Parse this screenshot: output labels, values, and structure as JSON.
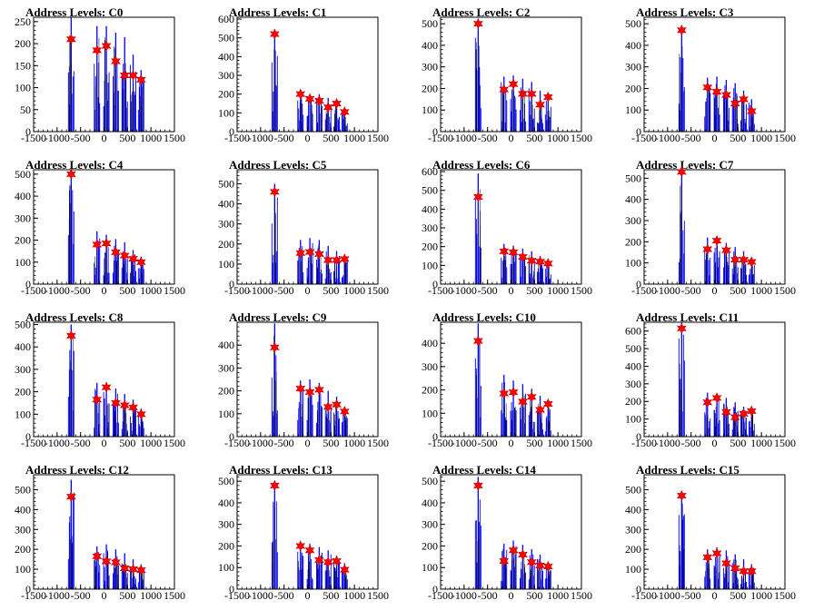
{
  "chart_data": [
    {
      "type": "histogram",
      "title": "Address Levels: C0",
      "xlim": [
        -1500,
        1500
      ],
      "ylim": [
        0,
        260
      ],
      "yticks": [
        0,
        50,
        100,
        150,
        200,
        250
      ],
      "xticks": [
        -1500,
        -1000,
        -500,
        0,
        500,
        1000,
        1500
      ],
      "peaks": [
        {
          "x": -700,
          "spike": 260,
          "marker": 210
        },
        {
          "x": -150,
          "spike": 240,
          "marker": 185
        },
        {
          "x": 50,
          "spike": 240,
          "marker": 195
        },
        {
          "x": 250,
          "spike": 225,
          "marker": 160
        },
        {
          "x": 440,
          "spike": 215,
          "marker": 128
        },
        {
          "x": 620,
          "spike": 175,
          "marker": 128
        },
        {
          "x": 790,
          "spike": 140,
          "marker": 118
        }
      ]
    },
    {
      "type": "histogram",
      "title": "Address Levels: C1",
      "xlim": [
        -1500,
        1500
      ],
      "ylim": [
        0,
        610
      ],
      "yticks": [
        0,
        100,
        200,
        300,
        400,
        500,
        600
      ],
      "xticks": [
        -1500,
        -1000,
        -500,
        0,
        500,
        1000,
        1500
      ],
      "peaks": [
        {
          "x": -700,
          "spike": 540,
          "marker": 520
        },
        {
          "x": -150,
          "spike": 215,
          "marker": 200
        },
        {
          "x": 50,
          "spike": 200,
          "marker": 175
        },
        {
          "x": 250,
          "spike": 200,
          "marker": 165
        },
        {
          "x": 440,
          "spike": 180,
          "marker": 130
        },
        {
          "x": 620,
          "spike": 160,
          "marker": 150
        },
        {
          "x": 790,
          "spike": 120,
          "marker": 105
        }
      ]
    },
    {
      "type": "histogram",
      "title": "Address Levels: C2",
      "xlim": [
        -1500,
        1500
      ],
      "ylim": [
        0,
        530
      ],
      "yticks": [
        0,
        100,
        200,
        300,
        400,
        500
      ],
      "xticks": [
        -1500,
        -1000,
        -500,
        0,
        500,
        1000,
        1500
      ],
      "peaks": [
        {
          "x": -700,
          "spike": 510,
          "marker": 500
        },
        {
          "x": -150,
          "spike": 255,
          "marker": 195
        },
        {
          "x": 50,
          "spike": 260,
          "marker": 220
        },
        {
          "x": 250,
          "spike": 245,
          "marker": 175
        },
        {
          "x": 440,
          "spike": 230,
          "marker": 175
        },
        {
          "x": 620,
          "spike": 190,
          "marker": 125
        },
        {
          "x": 790,
          "spike": 170,
          "marker": 160
        }
      ]
    },
    {
      "type": "histogram",
      "title": "Address Levels: C3",
      "xlim": [
        -1500,
        1500
      ],
      "ylim": [
        0,
        530
      ],
      "yticks": [
        0,
        100,
        200,
        300,
        400,
        500
      ],
      "xticks": [
        -1500,
        -1000,
        -500,
        0,
        500,
        1000,
        1500
      ],
      "peaks": [
        {
          "x": -700,
          "spike": 480,
          "marker": 470
        },
        {
          "x": -150,
          "spike": 250,
          "marker": 205
        },
        {
          "x": 50,
          "spike": 255,
          "marker": 185
        },
        {
          "x": 250,
          "spike": 240,
          "marker": 170
        },
        {
          "x": 440,
          "spike": 225,
          "marker": 130
        },
        {
          "x": 620,
          "spike": 190,
          "marker": 150
        },
        {
          "x": 790,
          "spike": 150,
          "marker": 95
        }
      ]
    },
    {
      "type": "histogram",
      "title": "Address Levels: C4",
      "xlim": [
        -1500,
        1500
      ],
      "ylim": [
        0,
        520
      ],
      "yticks": [
        0,
        100,
        200,
        300,
        400,
        500
      ],
      "xticks": [
        -1500,
        -1000,
        -500,
        0,
        500,
        1000,
        1500
      ],
      "peaks": [
        {
          "x": -700,
          "spike": 510,
          "marker": 500
        },
        {
          "x": -150,
          "spike": 240,
          "marker": 180
        },
        {
          "x": 50,
          "spike": 225,
          "marker": 185
        },
        {
          "x": 250,
          "spike": 205,
          "marker": 145
        },
        {
          "x": 440,
          "spike": 190,
          "marker": 130
        },
        {
          "x": 620,
          "spike": 155,
          "marker": 115
        },
        {
          "x": 790,
          "spike": 125,
          "marker": 100
        }
      ]
    },
    {
      "type": "histogram",
      "title": "Address Levels: C5",
      "xlim": [
        -1500,
        1500
      ],
      "ylim": [
        0,
        570
      ],
      "yticks": [
        0,
        100,
        200,
        300,
        400,
        500
      ],
      "xticks": [
        -1500,
        -1000,
        -500,
        0,
        500,
        1000,
        1500
      ],
      "peaks": [
        {
          "x": -700,
          "spike": 500,
          "marker": 460
        },
        {
          "x": -150,
          "spike": 220,
          "marker": 155
        },
        {
          "x": 50,
          "spike": 230,
          "marker": 160
        },
        {
          "x": 250,
          "spike": 220,
          "marker": 150
        },
        {
          "x": 440,
          "spike": 190,
          "marker": 120
        },
        {
          "x": 620,
          "spike": 165,
          "marker": 120
        },
        {
          "x": 790,
          "spike": 130,
          "marker": 125
        }
      ]
    },
    {
      "type": "histogram",
      "title": "Address Levels: C6",
      "xlim": [
        -1500,
        1500
      ],
      "ylim": [
        0,
        610
      ],
      "yticks": [
        0,
        100,
        200,
        300,
        400,
        500,
        600
      ],
      "xticks": [
        -1500,
        -1000,
        -500,
        0,
        500,
        1000,
        1500
      ],
      "peaks": [
        {
          "x": -700,
          "spike": 590,
          "marker": 465
        },
        {
          "x": -150,
          "spike": 215,
          "marker": 175
        },
        {
          "x": 50,
          "spike": 205,
          "marker": 170
        },
        {
          "x": 250,
          "spike": 190,
          "marker": 145
        },
        {
          "x": 440,
          "spike": 175,
          "marker": 125
        },
        {
          "x": 620,
          "spike": 150,
          "marker": 120
        },
        {
          "x": 790,
          "spike": 120,
          "marker": 110
        }
      ]
    },
    {
      "type": "histogram",
      "title": "Address Levels: C7",
      "xlim": [
        -1500,
        1500
      ],
      "ylim": [
        0,
        540
      ],
      "yticks": [
        0,
        100,
        200,
        300,
        400,
        500
      ],
      "xticks": [
        -1500,
        -1000,
        -500,
        0,
        500,
        1000,
        1500
      ],
      "peaks": [
        {
          "x": -700,
          "spike": 545,
          "marker": 530
        },
        {
          "x": -150,
          "spike": 220,
          "marker": 165
        },
        {
          "x": 50,
          "spike": 215,
          "marker": 205
        },
        {
          "x": 250,
          "spike": 195,
          "marker": 160
        },
        {
          "x": 440,
          "spike": 175,
          "marker": 115
        },
        {
          "x": 620,
          "spike": 155,
          "marker": 115
        },
        {
          "x": 790,
          "spike": 120,
          "marker": 105
        }
      ]
    },
    {
      "type": "histogram",
      "title": "Address Levels: C8",
      "xlim": [
        -1500,
        1500
      ],
      "ylim": [
        0,
        510
      ],
      "yticks": [
        0,
        100,
        200,
        300,
        400,
        500
      ],
      "xticks": [
        -1500,
        -1000,
        -500,
        0,
        500,
        1000,
        1500
      ],
      "peaks": [
        {
          "x": -700,
          "spike": 500,
          "marker": 450
        },
        {
          "x": -150,
          "spike": 240,
          "marker": 165
        },
        {
          "x": 50,
          "spike": 230,
          "marker": 220
        },
        {
          "x": 250,
          "spike": 215,
          "marker": 150
        },
        {
          "x": 440,
          "spike": 190,
          "marker": 140
        },
        {
          "x": 620,
          "spike": 165,
          "marker": 130
        },
        {
          "x": 790,
          "spike": 125,
          "marker": 100
        }
      ]
    },
    {
      "type": "histogram",
      "title": "Address Levels: C9",
      "xlim": [
        -1500,
        1500
      ],
      "ylim": [
        0,
        500
      ],
      "yticks": [
        0,
        100,
        200,
        300,
        400
      ],
      "xticks": [
        -1500,
        -1000,
        -500,
        0,
        500,
        1000,
        1500
      ],
      "peaks": [
        {
          "x": -700,
          "spike": 495,
          "marker": 390
        },
        {
          "x": -150,
          "spike": 245,
          "marker": 210
        },
        {
          "x": 50,
          "spike": 250,
          "marker": 195
        },
        {
          "x": 250,
          "spike": 235,
          "marker": 205
        },
        {
          "x": 440,
          "spike": 200,
          "marker": 130
        },
        {
          "x": 620,
          "spike": 175,
          "marker": 140
        },
        {
          "x": 790,
          "spike": 130,
          "marker": 110
        }
      ]
    },
    {
      "type": "histogram",
      "title": "Address Levels: C10",
      "xlim": [
        -1500,
        1500
      ],
      "ylim": [
        0,
        490
      ],
      "yticks": [
        0,
        100,
        200,
        300,
        400
      ],
      "xticks": [
        -1500,
        -1000,
        -500,
        0,
        500,
        1000,
        1500
      ],
      "peaks": [
        {
          "x": -700,
          "spike": 485,
          "marker": 410
        },
        {
          "x": -150,
          "spike": 265,
          "marker": 185
        },
        {
          "x": 50,
          "spike": 240,
          "marker": 190
        },
        {
          "x": 250,
          "spike": 225,
          "marker": 150
        },
        {
          "x": 440,
          "spike": 205,
          "marker": 170
        },
        {
          "x": 620,
          "spike": 175,
          "marker": 115
        },
        {
          "x": 790,
          "spike": 140,
          "marker": 140
        }
      ]
    },
    {
      "type": "histogram",
      "title": "Address Levels: C11",
      "xlim": [
        -1500,
        1500
      ],
      "ylim": [
        0,
        650
      ],
      "yticks": [
        0,
        100,
        200,
        300,
        400,
        500,
        600
      ],
      "xticks": [
        -1500,
        -1000,
        -500,
        0,
        500,
        1000,
        1500
      ],
      "peaks": [
        {
          "x": -700,
          "spike": 650,
          "marker": 615
        },
        {
          "x": -150,
          "spike": 250,
          "marker": 195
        },
        {
          "x": 50,
          "spike": 240,
          "marker": 220
        },
        {
          "x": 250,
          "spike": 220,
          "marker": 140
        },
        {
          "x": 440,
          "spike": 195,
          "marker": 110
        },
        {
          "x": 620,
          "spike": 170,
          "marker": 130
        },
        {
          "x": 790,
          "spike": 145,
          "marker": 145
        }
      ]
    },
    {
      "type": "histogram",
      "title": "Address Levels: C12",
      "xlim": [
        -1500,
        1500
      ],
      "ylim": [
        0,
        575
      ],
      "yticks": [
        0,
        100,
        200,
        300,
        400,
        500
      ],
      "xticks": [
        -1500,
        -1000,
        -500,
        0,
        500,
        1000,
        1500
      ],
      "peaks": [
        {
          "x": -700,
          "spike": 550,
          "marker": 465
        },
        {
          "x": -150,
          "spike": 215,
          "marker": 165
        },
        {
          "x": 50,
          "spike": 225,
          "marker": 140
        },
        {
          "x": 250,
          "spike": 200,
          "marker": 135
        },
        {
          "x": 440,
          "spike": 180,
          "marker": 105
        },
        {
          "x": 620,
          "spike": 150,
          "marker": 100
        },
        {
          "x": 790,
          "spike": 125,
          "marker": 95
        }
      ]
    },
    {
      "type": "histogram",
      "title": "Address Levels: C13",
      "xlim": [
        -1500,
        1500
      ],
      "ylim": [
        0,
        530
      ],
      "yticks": [
        0,
        100,
        200,
        300,
        400,
        500
      ],
      "xticks": [
        -1500,
        -1000,
        -500,
        0,
        500,
        1000,
        1500
      ],
      "peaks": [
        {
          "x": -700,
          "spike": 490,
          "marker": 480
        },
        {
          "x": -150,
          "spike": 215,
          "marker": 200
        },
        {
          "x": 50,
          "spike": 210,
          "marker": 180
        },
        {
          "x": 250,
          "spike": 195,
          "marker": 135
        },
        {
          "x": 440,
          "spike": 180,
          "marker": 125
        },
        {
          "x": 620,
          "spike": 155,
          "marker": 130
        },
        {
          "x": 790,
          "spike": 120,
          "marker": 90
        }
      ]
    },
    {
      "type": "histogram",
      "title": "Address Levels: C14",
      "xlim": [
        -1500,
        1500
      ],
      "ylim": [
        0,
        530
      ],
      "yticks": [
        0,
        100,
        200,
        300,
        400,
        500
      ],
      "xticks": [
        -1500,
        -1000,
        -500,
        0,
        500,
        1000,
        1500
      ],
      "peaks": [
        {
          "x": -700,
          "spike": 520,
          "marker": 480
        },
        {
          "x": -150,
          "spike": 210,
          "marker": 130
        },
        {
          "x": 50,
          "spike": 225,
          "marker": 180
        },
        {
          "x": 250,
          "spike": 205,
          "marker": 160
        },
        {
          "x": 440,
          "spike": 185,
          "marker": 125
        },
        {
          "x": 620,
          "spike": 160,
          "marker": 110
        },
        {
          "x": 790,
          "spike": 125,
          "marker": 105
        }
      ]
    },
    {
      "type": "histogram",
      "title": "Address Levels: C15",
      "xlim": [
        -1500,
        1500
      ],
      "ylim": [
        0,
        575
      ],
      "yticks": [
        0,
        100,
        200,
        300,
        400,
        500
      ],
      "xticks": [
        -1500,
        -1000,
        -500,
        0,
        500,
        1000,
        1500
      ],
      "peaks": [
        {
          "x": -700,
          "spike": 480,
          "marker": 470
        },
        {
          "x": -150,
          "spike": 200,
          "marker": 160
        },
        {
          "x": 50,
          "spike": 210,
          "marker": 180
        },
        {
          "x": 250,
          "spike": 195,
          "marker": 130
        },
        {
          "x": 440,
          "spike": 175,
          "marker": 105
        },
        {
          "x": 620,
          "spike": 150,
          "marker": 90
        },
        {
          "x": 790,
          "spike": 125,
          "marker": 90
        }
      ]
    }
  ],
  "colors": {
    "histogram": "#0000ff",
    "marker": "#ff0000",
    "axis": "#000000",
    "background": "#ffffff"
  }
}
